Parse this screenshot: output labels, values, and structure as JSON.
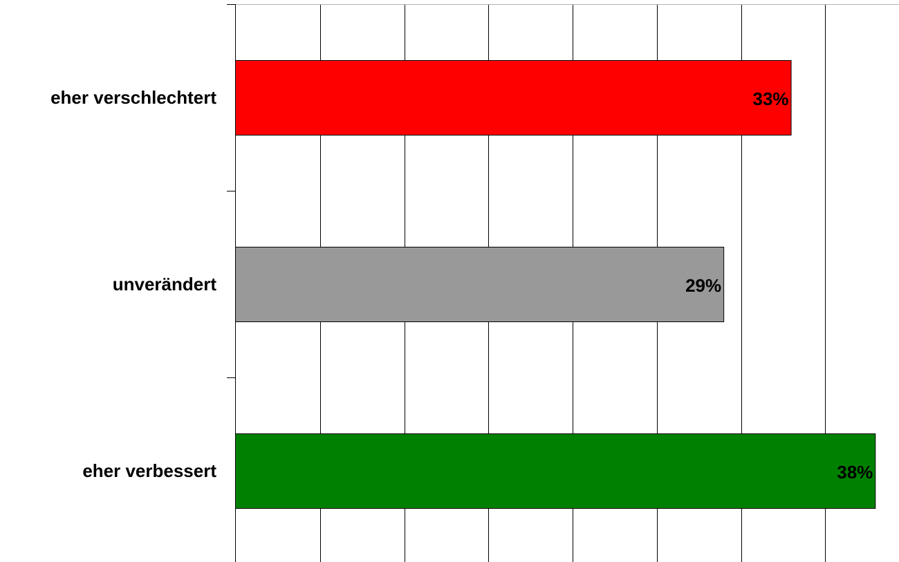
{
  "chart_data": {
    "type": "bar",
    "orientation": "horizontal",
    "categories": [
      "eher verschlechtert",
      "unverändert",
      "eher verbessert"
    ],
    "values": [
      33,
      29,
      38
    ],
    "value_labels": [
      "33%",
      "29%",
      "38%"
    ],
    "unit": "%",
    "colors": [
      "#ff0000",
      "#999999",
      "#008000"
    ],
    "xlim": [
      0,
      40
    ],
    "grid": true,
    "legend": "none",
    "title": "",
    "xlabel": "",
    "ylabel": ""
  }
}
